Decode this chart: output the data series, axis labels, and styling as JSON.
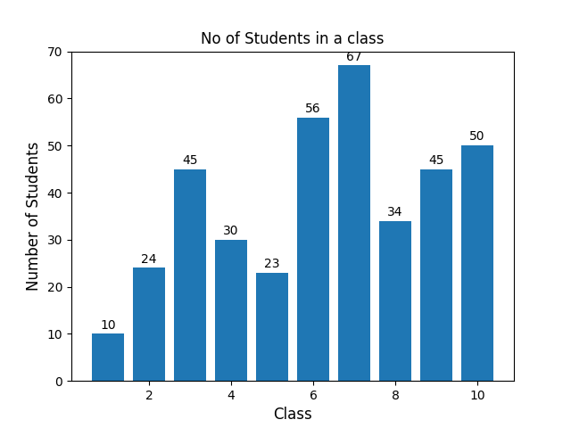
{
  "classes": [
    1,
    2,
    3,
    4,
    5,
    6,
    7,
    8,
    9,
    10
  ],
  "students": [
    10,
    24,
    45,
    30,
    23,
    56,
    67,
    34,
    45,
    50
  ],
  "bar_color": "#1f77b4",
  "title": "No of Students in a class",
  "xlabel": "Class",
  "ylabel": "Number of Students",
  "ylim": [
    0,
    70
  ],
  "title_fontsize": 12,
  "label_fontsize": 12,
  "annotation_fontsize": 10,
  "figsize": [
    6.4,
    4.8
  ],
  "dpi": 100
}
